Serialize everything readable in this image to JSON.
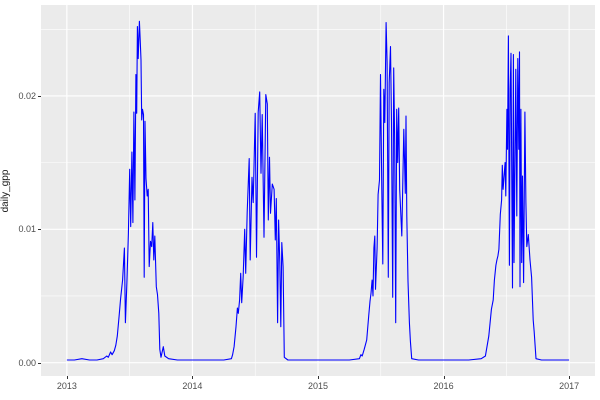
{
  "figure": {
    "background": "#FFFFFF",
    "panel_background": "#EBEBEB",
    "grid_color": "#FFFFFF",
    "tick_mark_color": "#333333",
    "axis_text_color": "#4D4D4D",
    "axis_title_color": "#1A1A1A"
  },
  "chart_data": {
    "type": "line",
    "title": "",
    "xlabel": "",
    "ylabel": "daily_gpp",
    "legend": "none",
    "grid": true,
    "xlim": [
      2012.794,
      2017.206
    ],
    "ylim": [
      -0.001,
      0.02682
    ],
    "x_ticks": [
      {
        "value": 2013,
        "label": "2013"
      },
      {
        "value": 2014,
        "label": "2014"
      },
      {
        "value": 2015,
        "label": "2015"
      },
      {
        "value": 2016,
        "label": "2016"
      },
      {
        "value": 2017,
        "label": "2017"
      }
    ],
    "y_ticks": [
      {
        "value": 0.0,
        "label": "0.00"
      },
      {
        "value": 0.01,
        "label": "0.01"
      },
      {
        "value": 0.02,
        "label": "0.02"
      }
    ],
    "x_minor": [
      2013.5,
      2014.5,
      2015.5,
      2016.5
    ],
    "y_minor": [
      0.005,
      0.015,
      0.025
    ],
    "series": [
      {
        "name": "daily_gpp",
        "color": "#0000FF",
        "points": [
          [
            2013.0,
            0.0002
          ],
          [
            2013.06,
            0.0002
          ],
          [
            2013.12,
            0.0003
          ],
          [
            2013.18,
            0.0002
          ],
          [
            2013.24,
            0.0002
          ],
          [
            2013.29,
            0.0003
          ],
          [
            2013.318,
            0.0005
          ],
          [
            2013.33,
            0.0004
          ],
          [
            2013.348,
            0.0008
          ],
          [
            2013.36,
            0.0006
          ],
          [
            2013.378,
            0.0009
          ],
          [
            2013.39,
            0.0013
          ],
          [
            2013.402,
            0.002
          ],
          [
            2013.415,
            0.0034
          ],
          [
            2013.428,
            0.0048
          ],
          [
            2013.444,
            0.0062
          ],
          [
            2013.458,
            0.0086
          ],
          [
            2013.466,
            0.003
          ],
          [
            2013.478,
            0.006
          ],
          [
            2013.49,
            0.0097
          ],
          [
            2013.5,
            0.0145
          ],
          [
            2013.508,
            0.0102
          ],
          [
            2013.518,
            0.0158
          ],
          [
            2013.526,
            0.0105
          ],
          [
            2013.534,
            0.0188
          ],
          [
            2013.542,
            0.0122
          ],
          [
            2013.55,
            0.0216
          ],
          [
            2013.556,
            0.0187
          ],
          [
            2013.562,
            0.0252
          ],
          [
            2013.568,
            0.0228
          ],
          [
            2013.578,
            0.0256
          ],
          [
            2013.584,
            0.0242
          ],
          [
            2013.59,
            0.0227
          ],
          [
            2013.596,
            0.0182
          ],
          [
            2013.602,
            0.019
          ],
          [
            2013.61,
            0.0186
          ],
          [
            2013.616,
            0.0064
          ],
          [
            2013.622,
            0.0181
          ],
          [
            2013.63,
            0.0138
          ],
          [
            2013.64,
            0.0125
          ],
          [
            2013.648,
            0.013
          ],
          [
            2013.656,
            0.0072
          ],
          [
            2013.666,
            0.0091
          ],
          [
            2013.676,
            0.0087
          ],
          [
            2013.684,
            0.0105
          ],
          [
            2013.692,
            0.0077
          ],
          [
            2013.7,
            0.0095
          ],
          [
            2013.712,
            0.0057
          ],
          [
            2013.722,
            0.0051
          ],
          [
            2013.732,
            0.0037
          ],
          [
            2013.74,
            0.001
          ],
          [
            2013.75,
            0.0004
          ],
          [
            2013.768,
            0.0012
          ],
          [
            2013.78,
            0.0005
          ],
          [
            2013.81,
            0.0003
          ],
          [
            2013.88,
            0.0002
          ],
          [
            2013.95,
            0.0002
          ],
          [
            2014.05,
            0.0002
          ],
          [
            2014.15,
            0.0002
          ],
          [
            2014.25,
            0.0002
          ],
          [
            2014.31,
            0.0003
          ],
          [
            2014.32,
            0.0006
          ],
          [
            2014.332,
            0.0012
          ],
          [
            2014.347,
            0.0027
          ],
          [
            2014.358,
            0.0041
          ],
          [
            2014.365,
            0.0037
          ],
          [
            2014.376,
            0.0047
          ],
          [
            2014.384,
            0.0067
          ],
          [
            2014.392,
            0.0045
          ],
          [
            2014.404,
            0.0065
          ],
          [
            2014.416,
            0.01
          ],
          [
            2014.424,
            0.0067
          ],
          [
            2014.436,
            0.0113
          ],
          [
            2014.452,
            0.0153
          ],
          [
            2014.46,
            0.0077
          ],
          [
            2014.474,
            0.0139
          ],
          [
            2014.484,
            0.012
          ],
          [
            2014.5,
            0.0187
          ],
          [
            2014.51,
            0.0079
          ],
          [
            2014.524,
            0.0188
          ],
          [
            2014.536,
            0.0203
          ],
          [
            2014.546,
            0.0142
          ],
          [
            2014.556,
            0.0186
          ],
          [
            2014.57,
            0.0094
          ],
          [
            2014.584,
            0.0201
          ],
          [
            2014.596,
            0.0194
          ],
          [
            2014.604,
            0.0107
          ],
          [
            2014.614,
            0.0154
          ],
          [
            2014.622,
            0.0112
          ],
          [
            2014.636,
            0.0134
          ],
          [
            2014.65,
            0.013
          ],
          [
            2014.66,
            0.0092
          ],
          [
            2014.668,
            0.0123
          ],
          [
            2014.678,
            0.003
          ],
          [
            2014.686,
            0.0107
          ],
          [
            2014.696,
            0.0075
          ],
          [
            2014.704,
            0.0027
          ],
          [
            2014.712,
            0.009
          ],
          [
            2014.722,
            0.0072
          ],
          [
            2014.732,
            0.0004
          ],
          [
            2014.76,
            0.0002
          ],
          [
            2014.85,
            0.0002
          ],
          [
            2014.95,
            0.0002
          ],
          [
            2015.05,
            0.0002
          ],
          [
            2015.15,
            0.0002
          ],
          [
            2015.25,
            0.0002
          ],
          [
            2015.33,
            0.0003
          ],
          [
            2015.342,
            0.0006
          ],
          [
            2015.352,
            0.0005
          ],
          [
            2015.368,
            0.001
          ],
          [
            2015.388,
            0.0017
          ],
          [
            2015.404,
            0.0035
          ],
          [
            2015.414,
            0.0046
          ],
          [
            2015.422,
            0.0052
          ],
          [
            2015.431,
            0.0062
          ],
          [
            2015.438,
            0.005
          ],
          [
            2015.445,
            0.0086
          ],
          [
            2015.452,
            0.0095
          ],
          [
            2015.458,
            0.0055
          ],
          [
            2015.471,
            0.0086
          ],
          [
            2015.479,
            0.0126
          ],
          [
            2015.49,
            0.0137
          ],
          [
            2015.498,
            0.0216
          ],
          [
            2015.508,
            0.013
          ],
          [
            2015.516,
            0.0074
          ],
          [
            2015.524,
            0.0205
          ],
          [
            2015.532,
            0.018
          ],
          [
            2015.542,
            0.0255
          ],
          [
            2015.55,
            0.0225
          ],
          [
            2015.56,
            0.0064
          ],
          [
            2015.567,
            0.021
          ],
          [
            2015.577,
            0.0237
          ],
          [
            2015.585,
            0.018
          ],
          [
            2015.595,
            0.0049
          ],
          [
            2015.603,
            0.0221
          ],
          [
            2015.611,
            0.0165
          ],
          [
            2015.619,
            0.003
          ],
          [
            2015.627,
            0.019
          ],
          [
            2015.635,
            0.015
          ],
          [
            2015.643,
            0.0191
          ],
          [
            2015.651,
            0.013
          ],
          [
            2015.667,
            0.0095
          ],
          [
            2015.683,
            0.0175
          ],
          [
            2015.695,
            0.0127
          ],
          [
            2015.701,
            0.0185
          ],
          [
            2015.707,
            0.011
          ],
          [
            2015.717,
            0.0061
          ],
          [
            2015.728,
            0.003
          ],
          [
            2015.736,
            0.0016
          ],
          [
            2015.746,
            0.0003
          ],
          [
            2015.8,
            0.0002
          ],
          [
            2015.9,
            0.0002
          ],
          [
            2016.0,
            0.0002
          ],
          [
            2016.1,
            0.0002
          ],
          [
            2016.2,
            0.0002
          ],
          [
            2016.3,
            0.0003
          ],
          [
            2016.333,
            0.0005
          ],
          [
            2016.36,
            0.002
          ],
          [
            2016.381,
            0.004
          ],
          [
            2016.395,
            0.0047
          ],
          [
            2016.405,
            0.0062
          ],
          [
            2016.417,
            0.0073
          ],
          [
            2016.425,
            0.0077
          ],
          [
            2016.433,
            0.008
          ],
          [
            2016.441,
            0.0085
          ],
          [
            2016.452,
            0.0111
          ],
          [
            2016.462,
            0.0122
          ],
          [
            2016.468,
            0.0148
          ],
          [
            2016.474,
            0.013
          ],
          [
            2016.49,
            0.015
          ],
          [
            2016.496,
            0.0125
          ],
          [
            2016.504,
            0.019
          ],
          [
            2016.509,
            0.016
          ],
          [
            2016.516,
            0.0245
          ],
          [
            2016.524,
            0.0073
          ],
          [
            2016.531,
            0.0205
          ],
          [
            2016.537,
            0.0232
          ],
          [
            2016.544,
            0.0125
          ],
          [
            2016.549,
            0.0056
          ],
          [
            2016.556,
            0.0231
          ],
          [
            2016.561,
            0.0075
          ],
          [
            2016.569,
            0.0152
          ],
          [
            2016.575,
            0.022
          ],
          [
            2016.583,
            0.011
          ],
          [
            2016.591,
            0.0228
          ],
          [
            2016.599,
            0.016
          ],
          [
            2016.605,
            0.0233
          ],
          [
            2016.609,
            0.0057
          ],
          [
            2016.616,
            0.019
          ],
          [
            2016.622,
            0.0075
          ],
          [
            2016.629,
            0.014
          ],
          [
            2016.637,
            0.006
          ],
          [
            2016.648,
            0.0188
          ],
          [
            2016.656,
            0.012
          ],
          [
            2016.663,
            0.0087
          ],
          [
            2016.675,
            0.0096
          ],
          [
            2016.688,
            0.0077
          ],
          [
            2016.701,
            0.0064
          ],
          [
            2016.714,
            0.0032
          ],
          [
            2016.722,
            0.0023
          ],
          [
            2016.736,
            0.0003
          ],
          [
            2016.78,
            0.0002
          ],
          [
            2016.85,
            0.0002
          ],
          [
            2016.92,
            0.0002
          ],
          [
            2017.0,
            0.0002
          ]
        ]
      }
    ]
  }
}
